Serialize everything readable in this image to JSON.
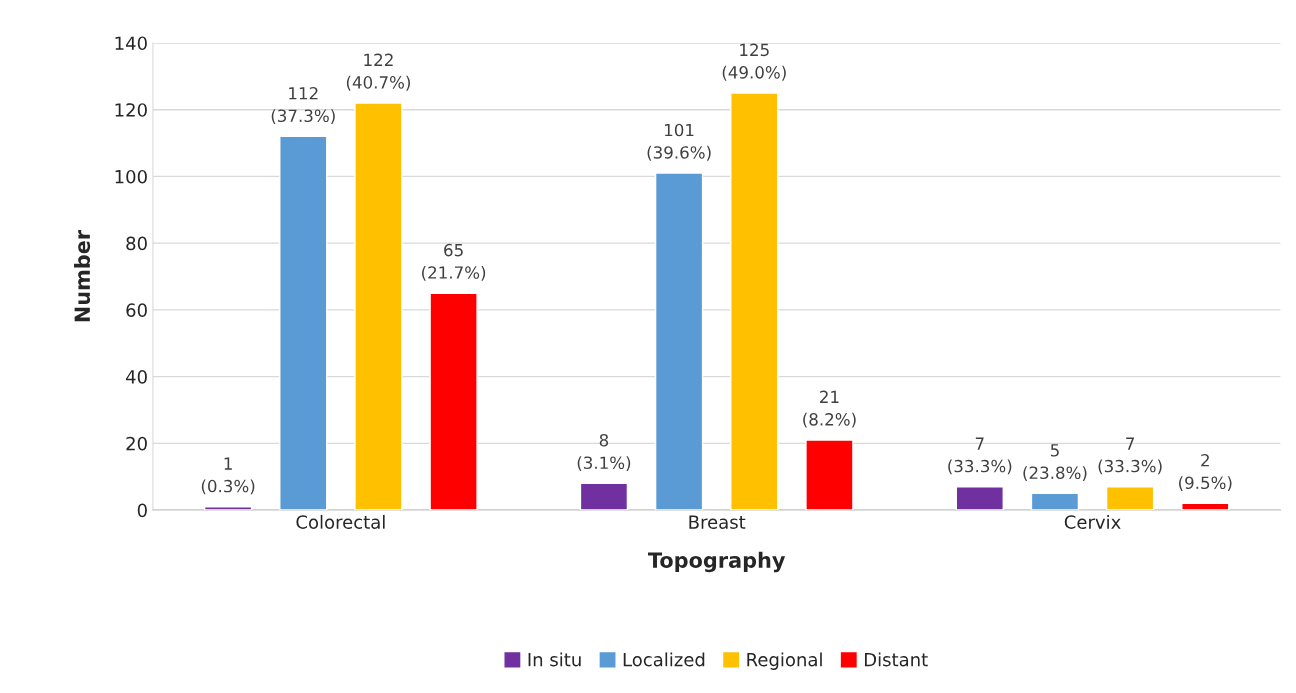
{
  "chart_data": {
    "type": "bar",
    "xlabel": "Topography",
    "ylabel": "Number",
    "categories": [
      "Colorectal",
      "Breast",
      "Cervix"
    ],
    "series": [
      {
        "name": "In situ",
        "color": "#7030a0",
        "values": [
          1,
          8,
          7
        ],
        "value_labels": [
          "1\n(0.3%)",
          "8\n(3.1%)",
          "7\n(33.3%)"
        ]
      },
      {
        "name": "Localized",
        "color": "#5b9bd5",
        "values": [
          112,
          101,
          5
        ],
        "value_labels": [
          "112\n(37.3%)",
          "101\n(39.6%)",
          "5\n(23.8%)"
        ]
      },
      {
        "name": "Regional",
        "color": "#ffc000",
        "values": [
          122,
          125,
          7
        ],
        "value_labels": [
          "122\n(40.7%)",
          "125\n(49.0%)",
          "7\n(33.3%)"
        ]
      },
      {
        "name": "Distant",
        "color": "#ff0000",
        "values": [
          65,
          21,
          2
        ],
        "value_labels": [
          "65\n(21.7%)",
          "21\n(8.2%)",
          "2\n(9.5%)"
        ]
      }
    ],
    "ylim": [
      0,
      140
    ],
    "yticks": [
      0,
      20,
      40,
      60,
      80,
      100,
      120,
      140
    ],
    "grid": "y",
    "legend": "bottom"
  }
}
